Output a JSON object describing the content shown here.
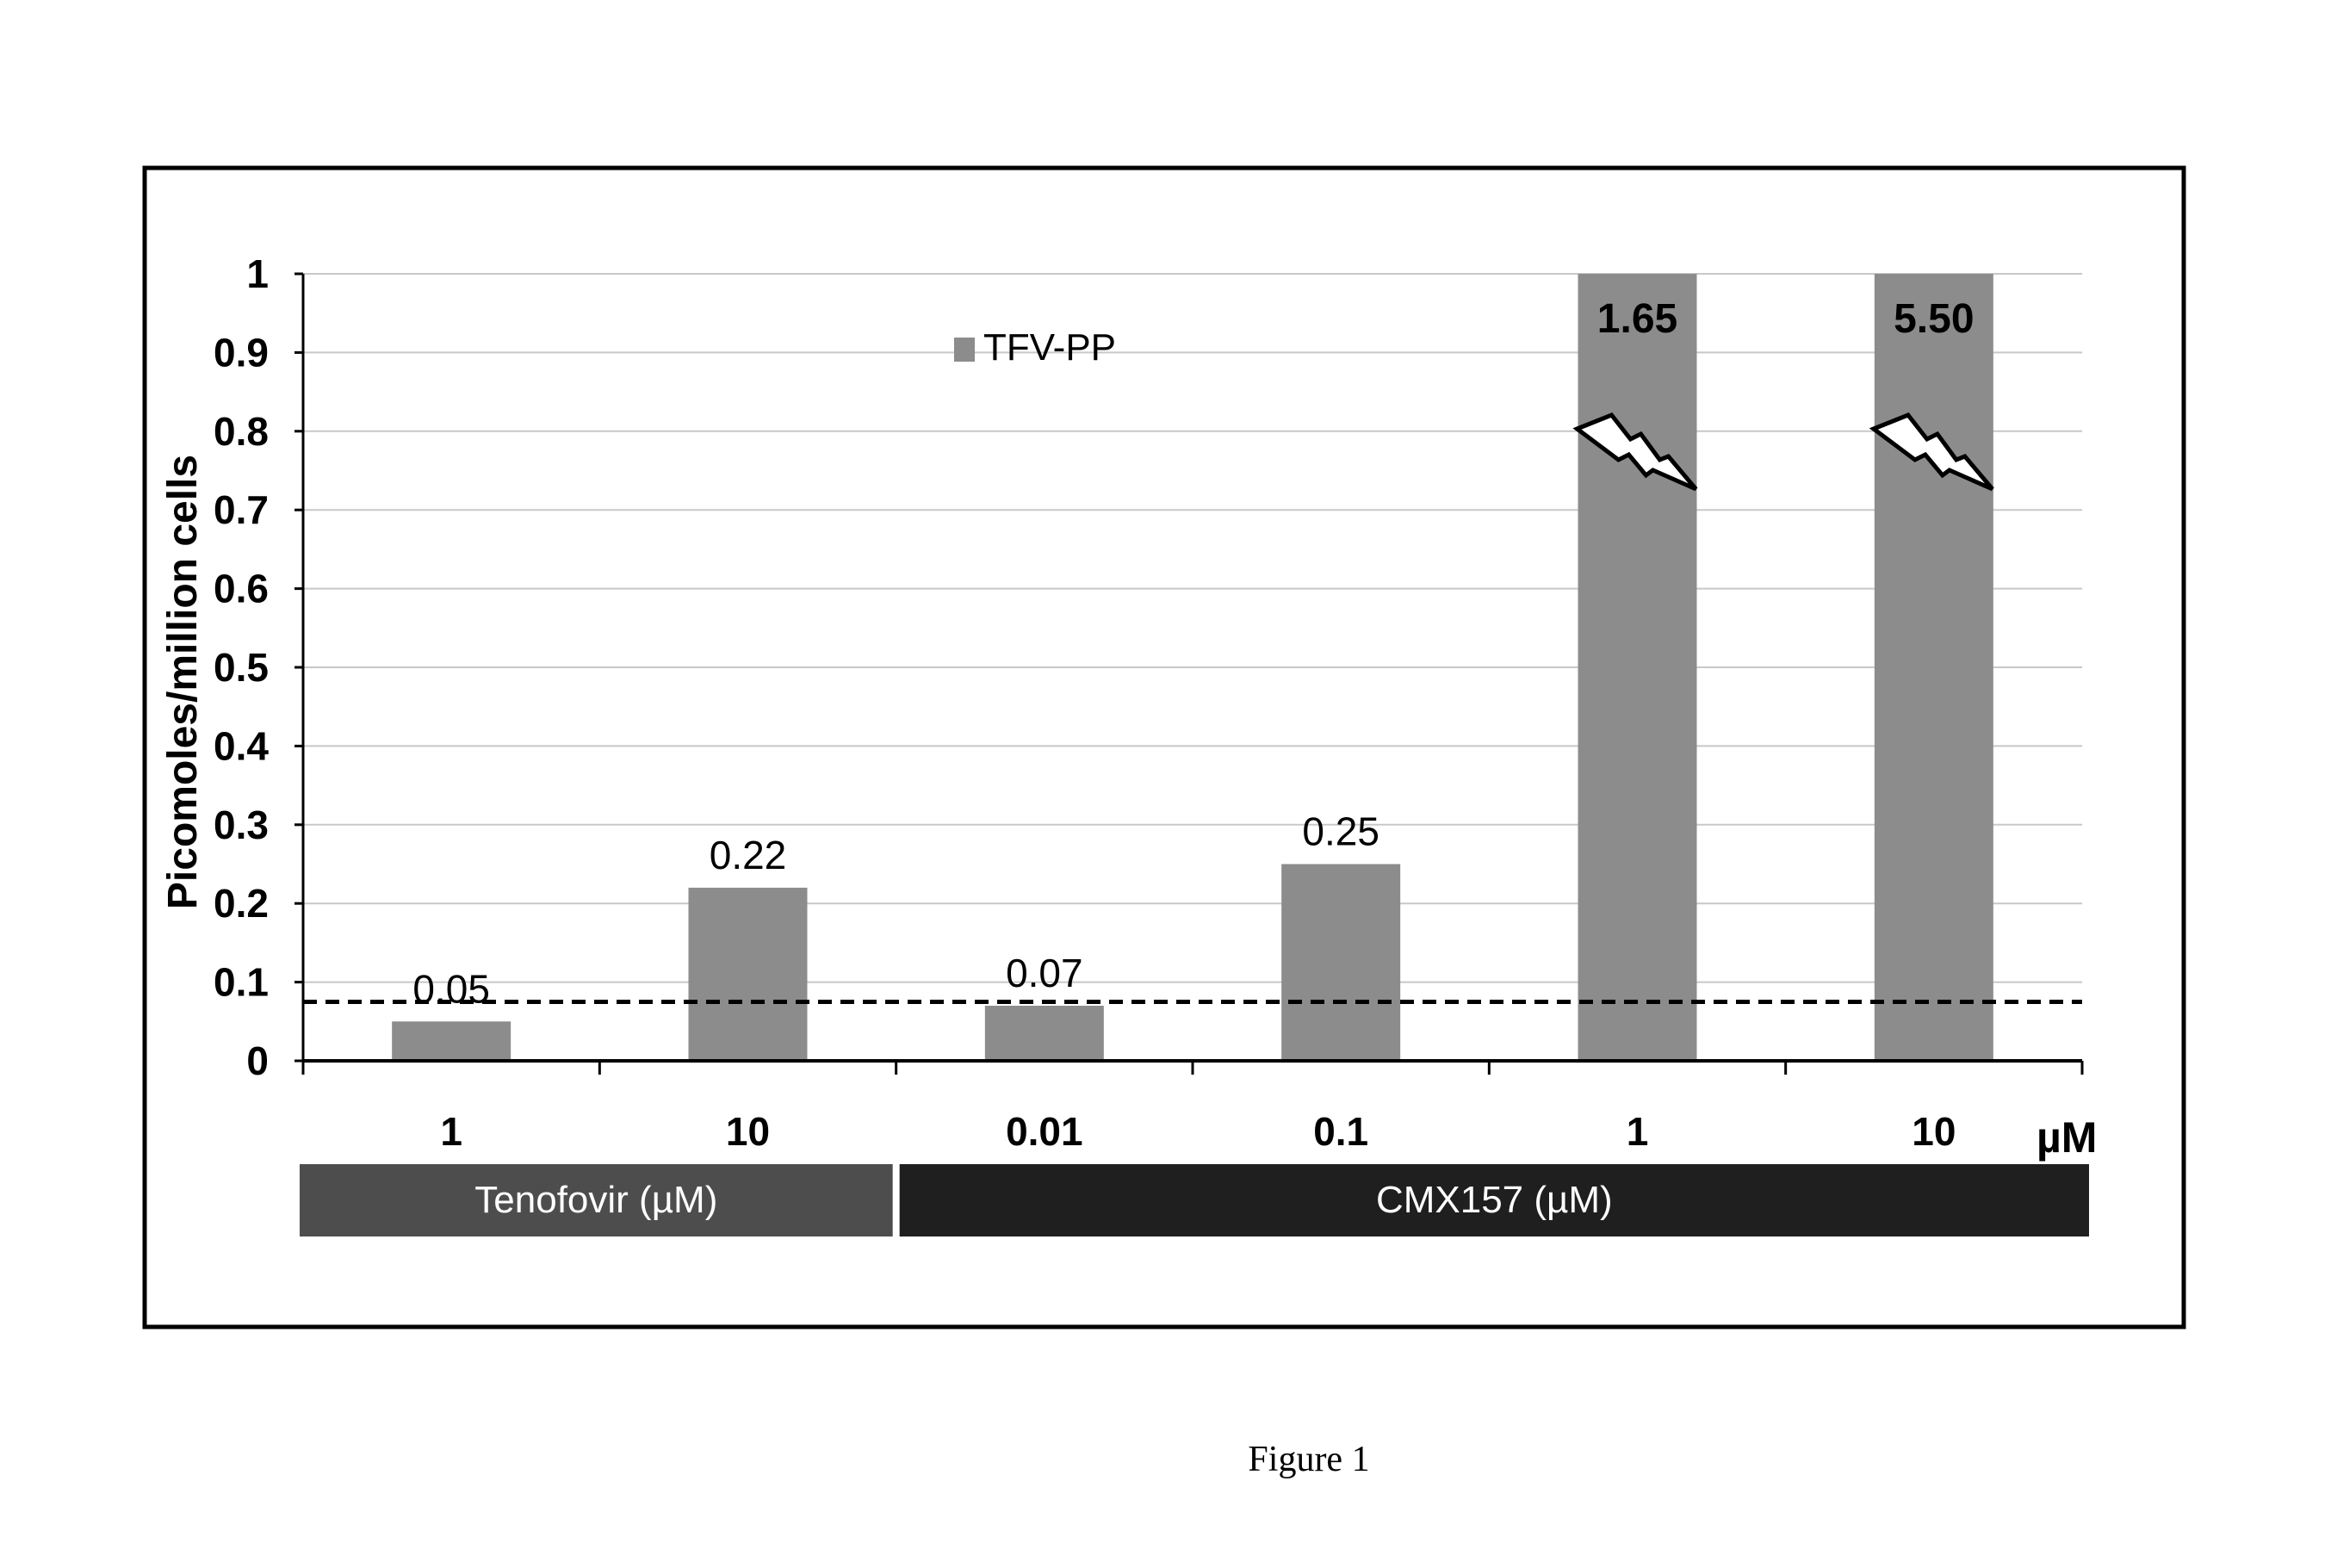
{
  "chart_data": {
    "type": "bar",
    "ylabel": "Picomoles/million cells",
    "ylim": [
      0,
      1
    ],
    "yticks": [
      "0",
      "0.1",
      "0.2",
      "0.3",
      "0.4",
      "0.5",
      "0.6",
      "0.7",
      "0.8",
      "0.9",
      "1"
    ],
    "grid": true,
    "legend_placement": "top-center",
    "series": [
      {
        "name": "TFV-PP",
        "color": "#8c8c8c",
        "categories": [
          "1",
          "10",
          "0.01",
          "0.1",
          "1",
          "10"
        ],
        "values": [
          0.05,
          0.22,
          0.07,
          0.25,
          1.65,
          5.5
        ],
        "data_labels": [
          "0.05",
          "0.22",
          "0.07",
          "0.25",
          "1.65",
          "5.50"
        ],
        "axis_break": [
          false,
          false,
          false,
          false,
          true,
          true
        ]
      }
    ],
    "x_unit_label": "µM",
    "reference_line": {
      "y": 0.075,
      "style": "dashed"
    },
    "groups": [
      {
        "label": "Tenofovir (µM)",
        "span": [
          0,
          1
        ],
        "color": "#4d4d4d"
      },
      {
        "label": "CMX157 (µM)",
        "span": [
          2,
          5
        ],
        "color": "#1f1f1f"
      }
    ]
  },
  "caption": "Figure 1"
}
